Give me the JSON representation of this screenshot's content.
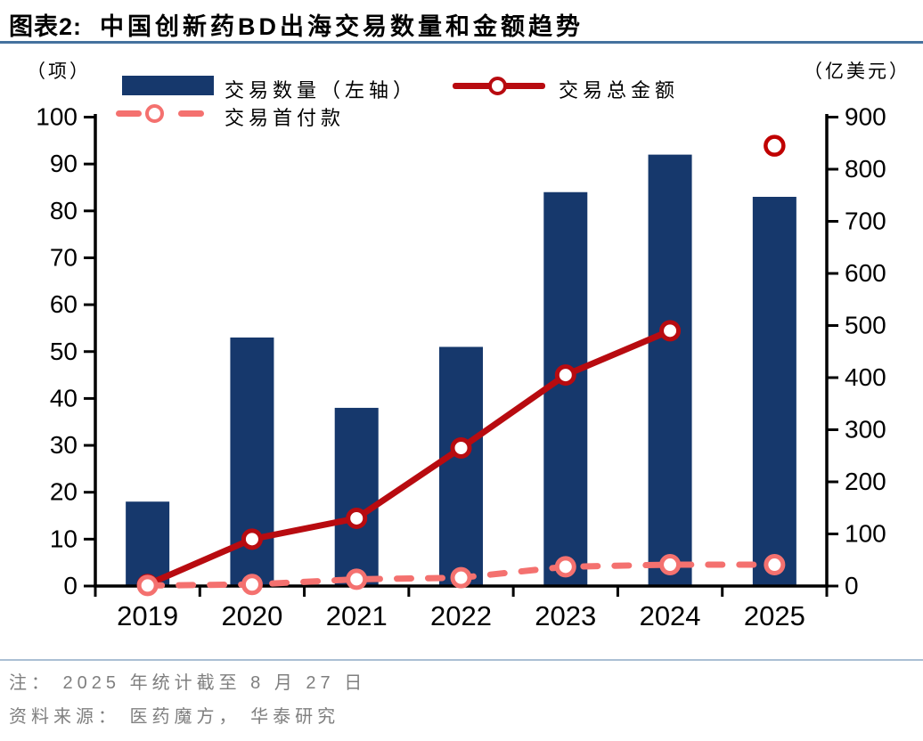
{
  "figure": {
    "number": "图表2:",
    "title": "中国创新药BD出海交易数量和金额趋势"
  },
  "chart_data": {
    "type": "combo-bar-line",
    "categories": [
      "2019",
      "2020",
      "2021",
      "2022",
      "2023",
      "2024",
      "2025"
    ],
    "left_axis": {
      "unit_label": "（项）",
      "min": 0,
      "max": 100,
      "step": 10
    },
    "right_axis": {
      "unit_label": "（亿美元）",
      "min": 0,
      "max": 900,
      "step": 100
    },
    "series": [
      {
        "name": "交易数量（左轴）",
        "type": "bar",
        "axis": "left",
        "values": [
          18,
          53,
          38,
          51,
          84,
          92,
          83
        ]
      },
      {
        "name": "交易总金额",
        "type": "line",
        "axis": "right",
        "values": [
          3,
          90,
          130,
          265,
          405,
          490,
          845
        ],
        "detached_last_point": true
      },
      {
        "name": "交易首付款",
        "type": "dashed_line",
        "axis": "right",
        "values": [
          1,
          3,
          13,
          16,
          37,
          41,
          41
        ]
      }
    ],
    "legend_position": "top",
    "grid": false
  },
  "colors": {
    "bar": "#16386C",
    "total_line": "#B80B10",
    "detached_point": "#C00000",
    "upfront_line": "#F4716F",
    "axis": "#000000",
    "title_rule": "#44719E",
    "footer_rule": "#AABFD4",
    "footer_text": "#7F7F7F"
  },
  "footer": {
    "note": "注： 2025 年统计截至 8 月 27 日",
    "source": "资料来源： 医药魔方， 华泰研究"
  }
}
